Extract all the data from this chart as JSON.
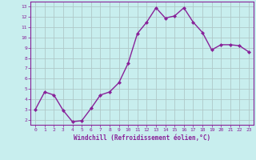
{
  "x": [
    0,
    1,
    2,
    3,
    4,
    5,
    6,
    7,
    8,
    9,
    10,
    11,
    12,
    13,
    14,
    15,
    16,
    17,
    18,
    19,
    20,
    21,
    22,
    23
  ],
  "y": [
    3.0,
    4.7,
    4.4,
    2.9,
    1.8,
    1.9,
    3.1,
    4.4,
    4.7,
    5.6,
    7.5,
    10.4,
    11.5,
    12.9,
    11.9,
    12.1,
    12.9,
    11.5,
    10.5,
    8.8,
    9.3,
    9.3,
    9.2,
    8.6
  ],
  "line_color": "#882299",
  "marker": "D",
  "marker_size": 2.0,
  "bg_color": "#c8eeee",
  "grid_color": "#b0c8c8",
  "xlabel": "Windchill (Refroidissement éolien,°C)",
  "xlabel_color": "#882299",
  "tick_color": "#882299",
  "ylim": [
    1.5,
    13.5
  ],
  "yticks": [
    2,
    3,
    4,
    5,
    6,
    7,
    8,
    9,
    10,
    11,
    12,
    13
  ],
  "xticks": [
    0,
    1,
    2,
    3,
    4,
    5,
    6,
    7,
    8,
    9,
    10,
    11,
    12,
    13,
    14,
    15,
    16,
    17,
    18,
    19,
    20,
    21,
    22,
    23
  ],
  "spine_color": "#882299",
  "line_width": 1.0
}
